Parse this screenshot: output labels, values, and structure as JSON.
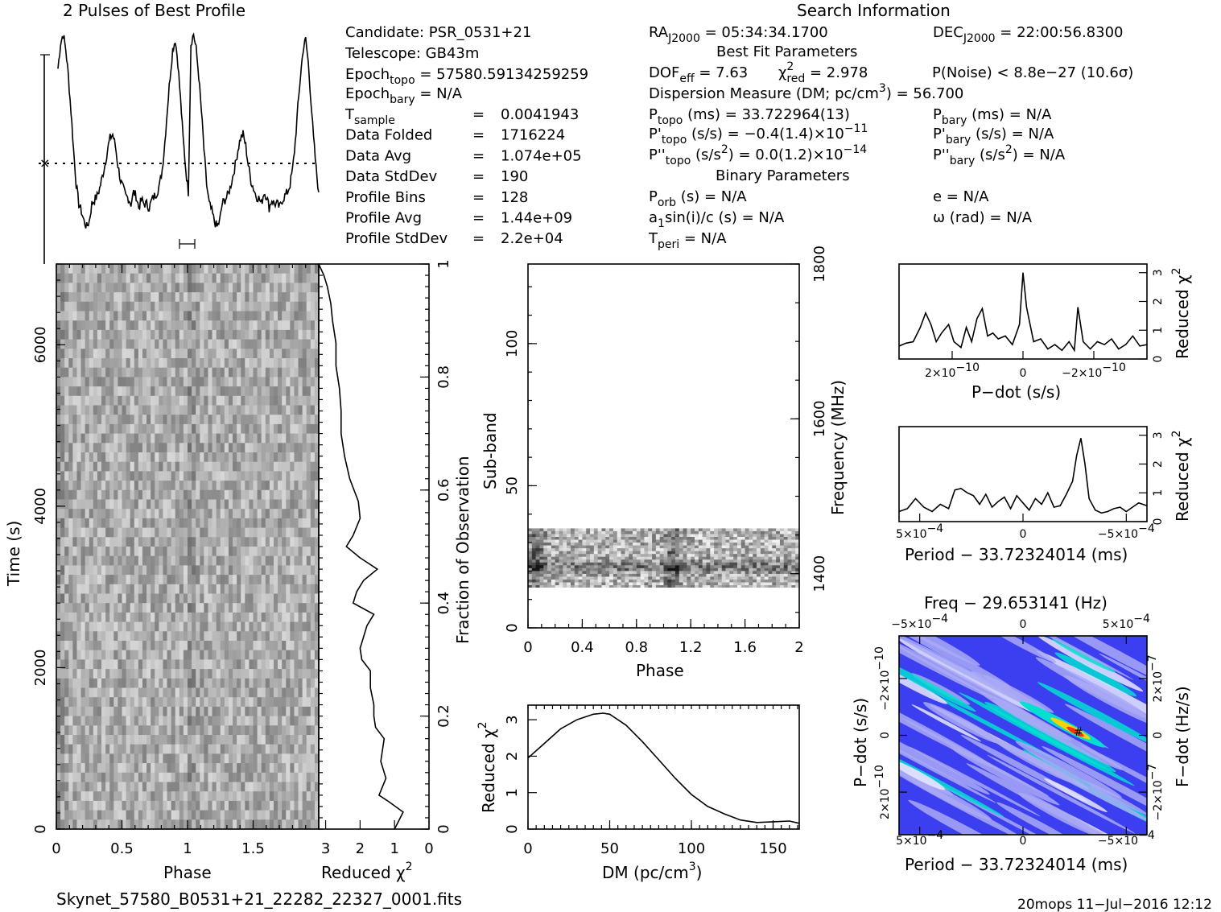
{
  "chart_data": [
    {
      "type": "line",
      "title": "2 Pulses of Best Profile",
      "x": [
        0,
        0.02,
        0.04,
        0.06,
        0.08,
        0.1,
        0.12,
        0.14,
        0.16,
        0.18,
        0.2,
        0.22,
        0.24,
        0.26,
        0.28,
        0.3,
        0.32,
        0.34,
        0.36,
        0.38,
        0.4,
        0.42,
        0.44,
        0.46,
        0.48,
        0.5,
        0.52,
        0.54,
        0.56,
        0.58,
        0.6,
        0.62,
        0.64,
        0.66,
        0.68,
        0.7,
        0.72,
        0.74,
        0.76,
        0.78,
        0.8,
        0.82,
        0.84,
        0.86,
        0.88,
        0.9,
        0.92,
        0.94,
        0.96,
        0.98,
        1.0
      ],
      "y": [
        0.82,
        0.95,
        1.0,
        0.92,
        0.78,
        0.6,
        0.4,
        0.22,
        0.12,
        0.08,
        0.03,
        0.0,
        0.03,
        0.12,
        0.14,
        0.16,
        0.2,
        0.26,
        0.32,
        0.4,
        0.46,
        0.48,
        0.42,
        0.32,
        0.24,
        0.2,
        0.16,
        0.15,
        0.12,
        0.18,
        0.16,
        0.1,
        0.14,
        0.12,
        0.12,
        0.1,
        0.14,
        0.16,
        0.18,
        0.22,
        0.3,
        0.44,
        0.62,
        0.78,
        0.92,
        0.97,
        0.85,
        0.66,
        0.46,
        0.3,
        0.18
      ]
    },
    {
      "type": "heatmap",
      "title": "Time vs Phase",
      "xlabel": "Phase",
      "ylabel": "Time (s)",
      "xticks": [
        "0",
        "0.5",
        "1",
        "1.5"
      ],
      "yticks": [
        "0",
        "2000",
        "4000",
        "6000"
      ],
      "xlim": [
        0,
        2
      ],
      "ylim": [
        0,
        7000
      ]
    },
    {
      "type": "line",
      "title": "Reduced chi2 vs Fraction of Observation",
      "xlabel": "Reduced χ",
      "xlabel_sup": "2",
      "ylabel": "Fraction of Observation",
      "xticks": [
        "3",
        "2",
        "1",
        "0"
      ],
      "yticks": [
        "0",
        "0.2",
        "0.4",
        "0.6",
        "0.8",
        "1"
      ],
      "xlim": [
        3.2,
        0
      ],
      "ylim": [
        0,
        1
      ],
      "x": [
        1.0,
        0.75,
        1.2,
        1.45,
        1.25,
        1.4,
        1.3,
        1.55,
        1.6,
        1.6,
        1.7,
        1.7,
        1.95,
        2.0,
        1.9,
        1.8,
        1.6,
        2.2,
        2.1,
        1.9,
        1.5,
        2.0,
        2.4,
        2.2,
        2.0,
        2.05,
        2.3,
        2.45,
        2.55,
        2.55,
        2.6,
        2.7,
        2.7,
        2.8,
        2.85,
        2.95,
        3.05,
        3.2
      ],
      "y": [
        0.0,
        0.03,
        0.05,
        0.06,
        0.09,
        0.12,
        0.16,
        0.18,
        0.2,
        0.22,
        0.25,
        0.28,
        0.3,
        0.32,
        0.34,
        0.36,
        0.38,
        0.4,
        0.42,
        0.44,
        0.46,
        0.48,
        0.5,
        0.52,
        0.55,
        0.58,
        0.62,
        0.66,
        0.7,
        0.74,
        0.78,
        0.82,
        0.86,
        0.9,
        0.93,
        0.96,
        0.98,
        1.0
      ]
    },
    {
      "type": "heatmap",
      "title": "Sub-band vs Phase",
      "xlabel": "Phase",
      "ylabel": "Sub-band",
      "y2label": "Frequency (MHz)",
      "xticks": [
        "0",
        "0.4",
        "0.8",
        "1.2",
        "1.6",
        "2"
      ],
      "yticks": [
        "0",
        "50",
        "100"
      ],
      "y2ticks": [
        "1400",
        "1600",
        "1800"
      ],
      "xlim": [
        0,
        2
      ],
      "ylim": [
        0,
        128
      ],
      "band_subbands": [
        14,
        35
      ]
    },
    {
      "type": "line",
      "title": "Reduced chi2 vs DM",
      "xlabel": "DM (pc/cm",
      "xlabel_sup": "3",
      "xlabel_end": ")",
      "ylabel": "Reduced χ",
      "ylabel_sup": "2",
      "xticks": [
        "0",
        "50",
        "100",
        "150"
      ],
      "yticks": [
        "0",
        "1",
        "2",
        "3"
      ],
      "xlim": [
        0,
        166
      ],
      "ylim": [
        0,
        3.4
      ],
      "x": [
        0,
        10,
        20,
        30,
        40,
        46,
        50,
        60,
        70,
        80,
        90,
        100,
        110,
        115,
        120,
        130,
        140,
        150,
        160,
        166
      ],
      "y": [
        1.95,
        2.35,
        2.75,
        3.0,
        3.15,
        3.18,
        3.15,
        2.85,
        2.4,
        1.9,
        1.4,
        0.95,
        0.62,
        0.52,
        0.42,
        0.25,
        0.18,
        0.2,
        0.22,
        0.16
      ]
    },
    {
      "type": "line",
      "title": "Reduced chi2 vs P-dot",
      "xlabel": "P−dot (s/s)",
      "ylabel": "Reduced χ",
      "ylabel_sup": "2",
      "xticks": [
        "2×10",
        "0",
        "−2×10"
      ],
      "xtick_exp": "−10",
      "yticks": [
        "0",
        "1",
        "2",
        "3"
      ],
      "xlim": [
        3.5e-10,
        -3.5e-10
      ],
      "ylim": [
        0,
        3.3
      ],
      "x": [
        3.5e-10,
        3.3e-10,
        3.1e-10,
        2.9e-10,
        2.75e-10,
        2.6e-10,
        2.45e-10,
        2.3e-10,
        2.1e-10,
        1.95e-10,
        1.75e-10,
        1.6e-10,
        1.45e-10,
        1.3e-10,
        1.15e-10,
        1e-10,
        8.5e-11,
        7e-11,
        5e-11,
        3e-11,
        1e-11,
        0.0,
        -1e-11,
        -3e-11,
        -5e-11,
        -7e-11,
        -9e-11,
        -1.1e-10,
        -1.3e-10,
        -1.45e-10,
        -1.55e-10,
        -1.7e-10,
        -1.9e-10,
        -2.1e-10,
        -2.3e-10,
        -2.5e-10,
        -2.7e-10,
        -2.9e-10,
        -3.1e-10,
        -3.3e-10,
        -3.5e-10
      ],
      "y": [
        0.45,
        0.55,
        0.6,
        1.1,
        1.6,
        1.2,
        0.6,
        0.9,
        1.2,
        0.6,
        0.4,
        1.1,
        0.6,
        1.4,
        1.75,
        0.8,
        0.9,
        0.7,
        0.8,
        0.5,
        1.2,
        3.0,
        1.8,
        0.6,
        0.7,
        0.35,
        0.5,
        0.3,
        0.6,
        0.3,
        1.8,
        0.6,
        0.35,
        0.6,
        0.5,
        0.7,
        0.35,
        0.5,
        0.8,
        0.45,
        0.5
      ]
    },
    {
      "type": "line",
      "title": "Reduced chi2 vs Period",
      "xlabel": "Period − 33.72324014 (ms)",
      "ylabel": "Reduced χ",
      "ylabel_sup": "2",
      "xticks": [
        "5×10",
        "0",
        "−5×10"
      ],
      "xtick_exp": "−4",
      "yticks": [
        "0",
        "1",
        "2",
        "3"
      ],
      "xlim": [
        0.0006,
        -0.0006
      ],
      "ylim": [
        0,
        3.3
      ],
      "x": [
        0.0006,
        0.00056,
        0.00052,
        0.00048,
        0.00044,
        0.0004,
        0.00036,
        0.00033,
        0.0003,
        0.00027,
        0.00024,
        0.00021,
        0.00018,
        0.00015,
        0.00012,
        9e-05,
        6e-05,
        3e-05,
        0.0,
        -3e-05,
        -6e-05,
        -9e-05,
        -0.00012,
        -0.00015,
        -0.00018,
        -0.00021,
        -0.00024,
        -0.00026,
        -0.00028,
        -0.0003,
        -0.00032,
        -0.00035,
        -0.00038,
        -0.00041,
        -0.00044,
        -0.00047,
        -0.0005,
        -0.00053,
        -0.00056,
        -0.0006
      ],
      "y": [
        0.35,
        0.45,
        0.8,
        0.5,
        0.35,
        0.6,
        0.45,
        1.1,
        1.15,
        1.0,
        0.9,
        0.6,
        0.95,
        0.5,
        0.7,
        0.85,
        0.45,
        0.9,
        0.65,
        0.4,
        0.8,
        0.6,
        1.0,
        0.5,
        0.55,
        0.95,
        1.4,
        2.3,
        2.9,
        2.0,
        0.8,
        0.4,
        0.3,
        0.35,
        0.45,
        0.5,
        0.35,
        0.5,
        0.65,
        0.55
      ]
    },
    {
      "type": "heatmap",
      "title": "Freq − 29.653141 (Hz)",
      "xlabel": "Period − 33.72324014 (ms)",
      "ylabel": "P−dot (s/s)",
      "y2label": "F−dot (Hz/s)",
      "xticks": [
        "5×10",
        "0",
        "−5×10"
      ],
      "xtick_exp": "−4",
      "x2ticks": [
        "−5×10",
        "0",
        "5×10"
      ],
      "x2tick_exp": "−4",
      "yticks": [
        "−2×10",
        "0",
        "2×10"
      ],
      "ytick_exp": "−10",
      "y2ticks": [
        "2×10",
        "0",
        "−2×10"
      ],
      "y2tick_exp": "−7",
      "xlim": [
        0.0006,
        -0.0006
      ],
      "ylim": [
        3.5e-10,
        -3.5e-10
      ]
    }
  ],
  "info": {
    "candidate": "Candidate:  PSR_0531+21",
    "telescope": "Telescope:  GB43m",
    "epoch_topo_label": "Epoch",
    "epoch_topo_sub": "topo",
    "epoch_topo_val": " = 57580.59134259259",
    "epoch_bary_label": "Epoch",
    "epoch_bary_sub": "bary",
    "epoch_bary_val": " = N/A",
    "tsample_label": "T",
    "tsample_sub": "sample",
    "rows": [
      {
        "label": "",
        "eq": "=",
        "value": "0.0041943"
      },
      {
        "label": "Data Folded",
        "eq": "=",
        "value": "1716224"
      },
      {
        "label": "Data Avg",
        "eq": "=",
        "value": "1.074e+05"
      },
      {
        "label": "Data StdDev",
        "eq": "=",
        "value": "190"
      },
      {
        "label": "Profile Bins",
        "eq": "=",
        "value": "128"
      },
      {
        "label": "Profile Avg",
        "eq": "=",
        "value": "1.44e+09"
      },
      {
        "label": "Profile StdDev",
        "eq": "=",
        "value": "2.2e+04"
      }
    ],
    "search_info": "Search Information",
    "ra_label": "RA",
    "ra_sub": "J2000",
    "ra_val": " = 05:34:34.1700",
    "dec_label": "DEC",
    "dec_sub": "J2000",
    "dec_val": " = 22:00:56.8300",
    "best_fit": "Best Fit Parameters",
    "dof_label": "DOF",
    "dof_sub": "eff",
    "dof_val": " = 7.63",
    "chi_label": "χ",
    "chi_sup": "2",
    "chi_sub": "red",
    "chi_val": " = 2.978",
    "pnoise": "P(Noise) < 8.8e−27   (10.6σ)",
    "dm_text": "Dispersion Measure (DM; pc/cm",
    "dm_sup": "3",
    "dm_val": ") = 56.700",
    "ptopo_label": "P",
    "ptopo_sub": "topo",
    "ptopo_val": " (ms) =  33.722964(13)",
    "pbary_label": "P",
    "pbary_sub": "bary",
    "pbary_val": " (ms) = N/A",
    "pdtopo_label": "P'",
    "pdtopo_sub": "topo",
    "pdtopo_val": " (s/s) = −0.4(1.4)×10",
    "pdtopo_exp": "−11",
    "pdbary_label": "P'",
    "pdbary_sub": "bary",
    "pdbary_val": " (s/s) = N/A",
    "pddtopo_label": "P''",
    "pddtopo_sub": "topo",
    "pddtopo_val": " (s/s",
    "pddtopo_sup": "2",
    "pddtopo_val2": ") = 0.0(1.2)×10",
    "pddtopo_exp": "−14",
    "pddbary_label": "P''",
    "pddbary_sub": "bary",
    "pddbary_val": " (s/s",
    "pddbary_sup": "2",
    "pddbary_val2": ") = N/A",
    "binary": "Binary Parameters",
    "porb_label": "P",
    "porb_sub": "orb",
    "porb_val": " (s) = N/A",
    "ecc": "e = N/A",
    "asini_label": "a",
    "asini_sub": "1",
    "asini_val": "sin(i)/c (s) = N/A",
    "omega": "ω (rad) = N/A",
    "tperi_label": "T",
    "tperi_sub": "peri",
    "tperi_val": " = N/A"
  },
  "footer": {
    "filename": "Skynet_57580_B0531+21_22282_22327_0001.fits",
    "stamp": "20mops 11−Jul−2016 12:12"
  },
  "colors": {
    "pd_low": "#3b3ff0",
    "pd_mid": "#a9a9f5",
    "pd_high": "#00e0d0",
    "pd_peak": "#ff3000"
  }
}
